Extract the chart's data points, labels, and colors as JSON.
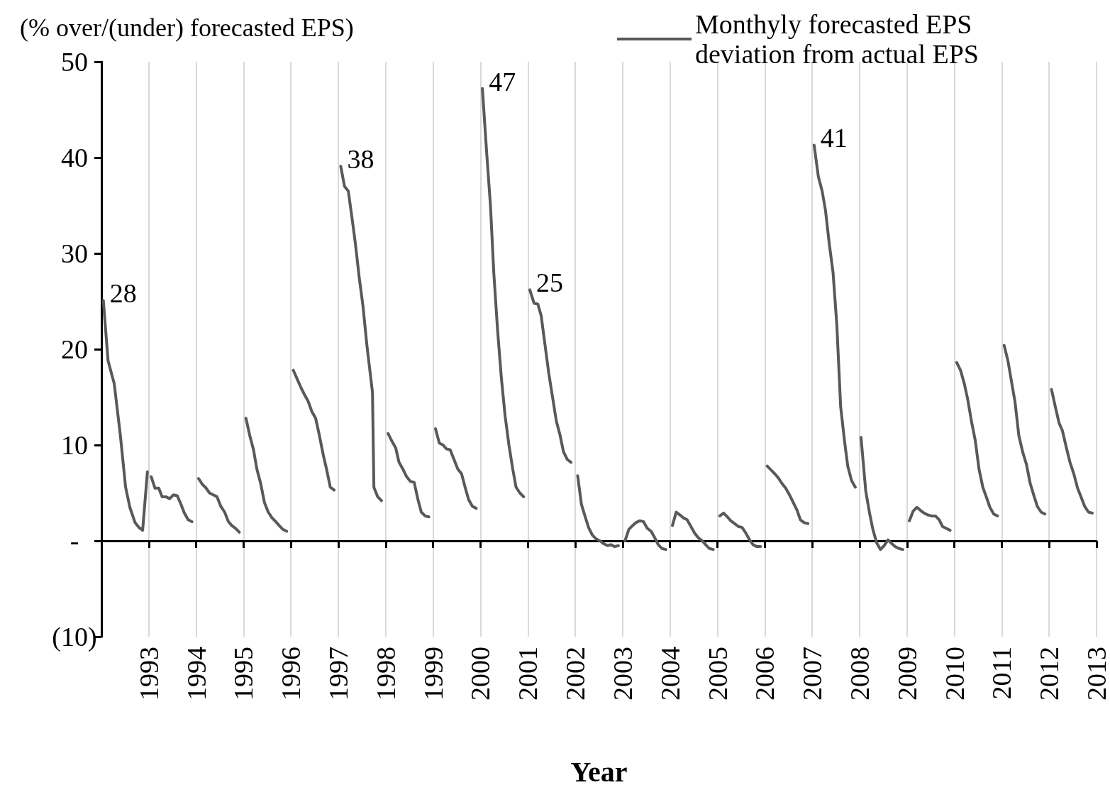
{
  "chart_data": {
    "type": "line",
    "ylabel": "(% over/(under) forecasted EPS)",
    "xlabel": "Year",
    "xlim": [
      1992,
      2013
    ],
    "ylim": [
      -10,
      50
    ],
    "xticks": [
      1993,
      1994,
      1995,
      1996,
      1997,
      1998,
      1999,
      2000,
      2001,
      2002,
      2003,
      2004,
      2005,
      2006,
      2007,
      2008,
      2009,
      2010,
      2011,
      2012,
      2013
    ],
    "yticks": [
      {
        "value": -10,
        "label": "(10)"
      },
      {
        "value": 0,
        "label": "-"
      },
      10,
      20,
      30,
      40,
      50
    ],
    "grid": "x",
    "legend": "top right",
    "marker": "none",
    "line_style": "solid",
    "annotations": [
      {
        "text": "28",
        "x": 1992.04,
        "y": 25.1
      },
      {
        "text": "38",
        "x": 1997.05,
        "y": 39.1
      },
      {
        "text": "47",
        "x": 2000.04,
        "y": 47.2
      },
      {
        "text": "25",
        "x": 2001.04,
        "y": 26.2
      },
      {
        "text": "41",
        "x": 2007.04,
        "y": 41.3
      }
    ],
    "series": [
      {
        "name": "Monthyly forecasted EPS deviation from actual EPS",
        "color": "#595959",
        "x": [
          1992.04,
          1992.14,
          1992.27,
          1992.4,
          1992.51,
          1992.6,
          1992.71,
          1992.79,
          1992.87,
          1992.97,
          1993,
          1993.05,
          1993.13,
          1993.21,
          1993.28,
          1993.36,
          1993.44,
          1993.52,
          1993.6,
          1993.68,
          1993.75,
          1993.83,
          1993.91,
          1994,
          1994.05,
          1994.13,
          1994.21,
          1994.28,
          1994.36,
          1994.44,
          1994.52,
          1994.6,
          1994.68,
          1994.75,
          1994.83,
          1994.91,
          1995,
          1995.05,
          1995.13,
          1995.21,
          1995.28,
          1995.36,
          1995.44,
          1995.52,
          1995.6,
          1995.68,
          1995.75,
          1995.83,
          1995.91,
          1996,
          1996.05,
          1996.13,
          1996.21,
          1996.28,
          1996.36,
          1996.44,
          1996.52,
          1996.6,
          1996.68,
          1996.75,
          1996.83,
          1996.91,
          1997,
          1997.05,
          1997.13,
          1997.21,
          1997.28,
          1997.36,
          1997.44,
          1997.52,
          1997.6,
          1997.72,
          1997.75,
          1997.83,
          1997.91,
          1998,
          1998.05,
          1998.13,
          1998.21,
          1998.28,
          1998.36,
          1998.44,
          1998.52,
          1998.6,
          1998.68,
          1998.75,
          1998.83,
          1998.91,
          1999,
          1999.05,
          1999.13,
          1999.21,
          1999.28,
          1999.36,
          1999.44,
          1999.52,
          1999.6,
          1999.68,
          1999.75,
          1999.83,
          1999.91,
          2000,
          2000.04,
          2000.13,
          2000.21,
          2000.28,
          2000.36,
          2000.44,
          2000.52,
          2000.6,
          2000.68,
          2000.75,
          2000.83,
          2000.91,
          2001,
          2001.04,
          2001.13,
          2001.21,
          2001.28,
          2001.36,
          2001.44,
          2001.52,
          2001.6,
          2001.68,
          2001.75,
          2001.83,
          2001.91,
          2002,
          2002.05,
          2002.13,
          2002.21,
          2002.28,
          2002.36,
          2002.44,
          2002.52,
          2002.6,
          2002.68,
          2002.75,
          2002.83,
          2002.91,
          2003,
          2003.05,
          2003.13,
          2003.21,
          2003.28,
          2003.36,
          2003.44,
          2003.52,
          2003.6,
          2003.68,
          2003.75,
          2003.83,
          2003.91,
          2004,
          2004.05,
          2004.13,
          2004.21,
          2004.28,
          2004.36,
          2004.44,
          2004.52,
          2004.6,
          2004.68,
          2004.75,
          2004.83,
          2004.91,
          2005,
          2005.05,
          2005.13,
          2005.21,
          2005.28,
          2005.36,
          2005.44,
          2005.52,
          2005.6,
          2005.68,
          2005.75,
          2005.83,
          2005.91,
          2006,
          2006.05,
          2006.13,
          2006.21,
          2006.28,
          2006.36,
          2006.44,
          2006.52,
          2006.6,
          2006.68,
          2006.75,
          2006.83,
          2006.91,
          2007,
          2007.04,
          2007.13,
          2007.21,
          2007.28,
          2007.36,
          2007.44,
          2007.52,
          2007.6,
          2007.68,
          2007.75,
          2007.83,
          2007.91,
          2008,
          2008.03,
          2008.13,
          2008.21,
          2008.28,
          2008.36,
          2008.44,
          2008.52,
          2008.6,
          2008.68,
          2008.75,
          2008.83,
          2008.91,
          2009,
          2009.05,
          2009.13,
          2009.21,
          2009.28,
          2009.36,
          2009.44,
          2009.52,
          2009.6,
          2009.68,
          2009.75,
          2009.83,
          2009.91,
          2010,
          2010.05,
          2010.13,
          2010.21,
          2010.28,
          2010.36,
          2010.44,
          2010.52,
          2010.6,
          2010.68,
          2010.75,
          2010.83,
          2010.91,
          2011,
          2011.05,
          2011.13,
          2011.21,
          2011.28,
          2011.36,
          2011.44,
          2011.52,
          2011.6,
          2011.68,
          2011.75,
          2011.83,
          2011.91,
          2012,
          2012.05,
          2012.13,
          2012.21,
          2012.28,
          2012.36,
          2012.44,
          2012.52,
          2012.6,
          2012.68,
          2012.75,
          2012.83,
          2012.91
        ],
        "values": [
          25.1,
          18.8,
          16.4,
          11,
          5.6,
          3.5,
          1.9,
          1.4,
          1.1,
          7.2,
          null,
          6.7,
          5.5,
          5.5,
          4.6,
          4.6,
          4.4,
          4.8,
          4.7,
          3.8,
          2.9,
          2.2,
          2.0,
          null,
          6.5,
          5.9,
          5.5,
          5.0,
          4.8,
          4.6,
          3.6,
          3.0,
          2.0,
          1.6,
          1.3,
          0.9,
          null,
          12.8,
          11,
          9.5,
          7.5,
          6,
          4,
          3,
          2.4,
          2,
          1.6,
          1.2,
          1.0,
          null,
          17.8,
          16.9,
          16,
          15.3,
          14.6,
          13.5,
          12.8,
          11,
          9,
          7.5,
          5.6,
          5.3,
          null,
          39.1,
          37,
          36.5,
          34,
          31,
          27.5,
          24.5,
          20.5,
          15.5,
          5.6,
          4.6,
          4.2,
          null,
          11.2,
          10.4,
          9.7,
          8.2,
          7.5,
          6.7,
          6.2,
          6.1,
          4.3,
          3.0,
          2.6,
          2.5,
          null,
          11.7,
          10.2,
          10.0,
          9.6,
          9.5,
          8.5,
          7.5,
          7.0,
          5.5,
          4.3,
          3.6,
          3.4,
          null,
          47.2,
          40.5,
          35,
          28,
          22,
          17,
          13,
          10,
          7.5,
          5.6,
          5.0,
          4.6,
          null,
          26.2,
          24.8,
          24.7,
          23.5,
          20.5,
          17.5,
          15,
          12.5,
          11,
          9.3,
          8.5,
          8.2,
          null,
          6.8,
          3.8,
          2.5,
          1.4,
          0.6,
          0.2,
          0,
          -0.3,
          -0.5,
          -0.4,
          -0.6,
          -0.5,
          null,
          0,
          1.2,
          1.6,
          1.9,
          2.1,
          2.0,
          1.3,
          1.0,
          0.3,
          -0.4,
          -0.8,
          -0.9,
          null,
          1.6,
          3.0,
          2.7,
          2.4,
          2.2,
          1.5,
          0.8,
          0.3,
          0,
          -0.4,
          -0.8,
          -0.9,
          null,
          2.6,
          2.9,
          2.5,
          2.1,
          1.8,
          1.5,
          1.4,
          0.8,
          0.1,
          -0.4,
          -0.6,
          -0.6,
          null,
          7.8,
          7.4,
          7.0,
          6.6,
          6.0,
          5.5,
          4.8,
          4.0,
          3.2,
          2.2,
          1.9,
          1.8,
          null,
          41.3,
          38,
          36.5,
          34.5,
          31,
          28,
          22.5,
          14,
          10.5,
          7.8,
          6.3,
          5.6,
          null,
          10.8,
          5.2,
          2.9,
          1.2,
          -0.2,
          -0.9,
          -0.5,
          0.1,
          -0.3,
          -0.6,
          -0.8,
          -0.9,
          null,
          2.1,
          3.1,
          3.5,
          3.2,
          2.9,
          2.7,
          2.6,
          2.6,
          2.2,
          1.5,
          1.3,
          1.1,
          null,
          18.6,
          17.8,
          16.4,
          14.8,
          12.5,
          10.5,
          7.5,
          5.6,
          4.5,
          3.5,
          2.8,
          2.6,
          null,
          20.4,
          18.8,
          16.5,
          14.5,
          11,
          9.3,
          8,
          6,
          4.7,
          3.6,
          3.0,
          2.8,
          null,
          15.8,
          14,
          12.3,
          11.5,
          9.8,
          8.2,
          7.0,
          5.5,
          4.5,
          3.6,
          3.0,
          2.9
        ]
      }
    ]
  }
}
